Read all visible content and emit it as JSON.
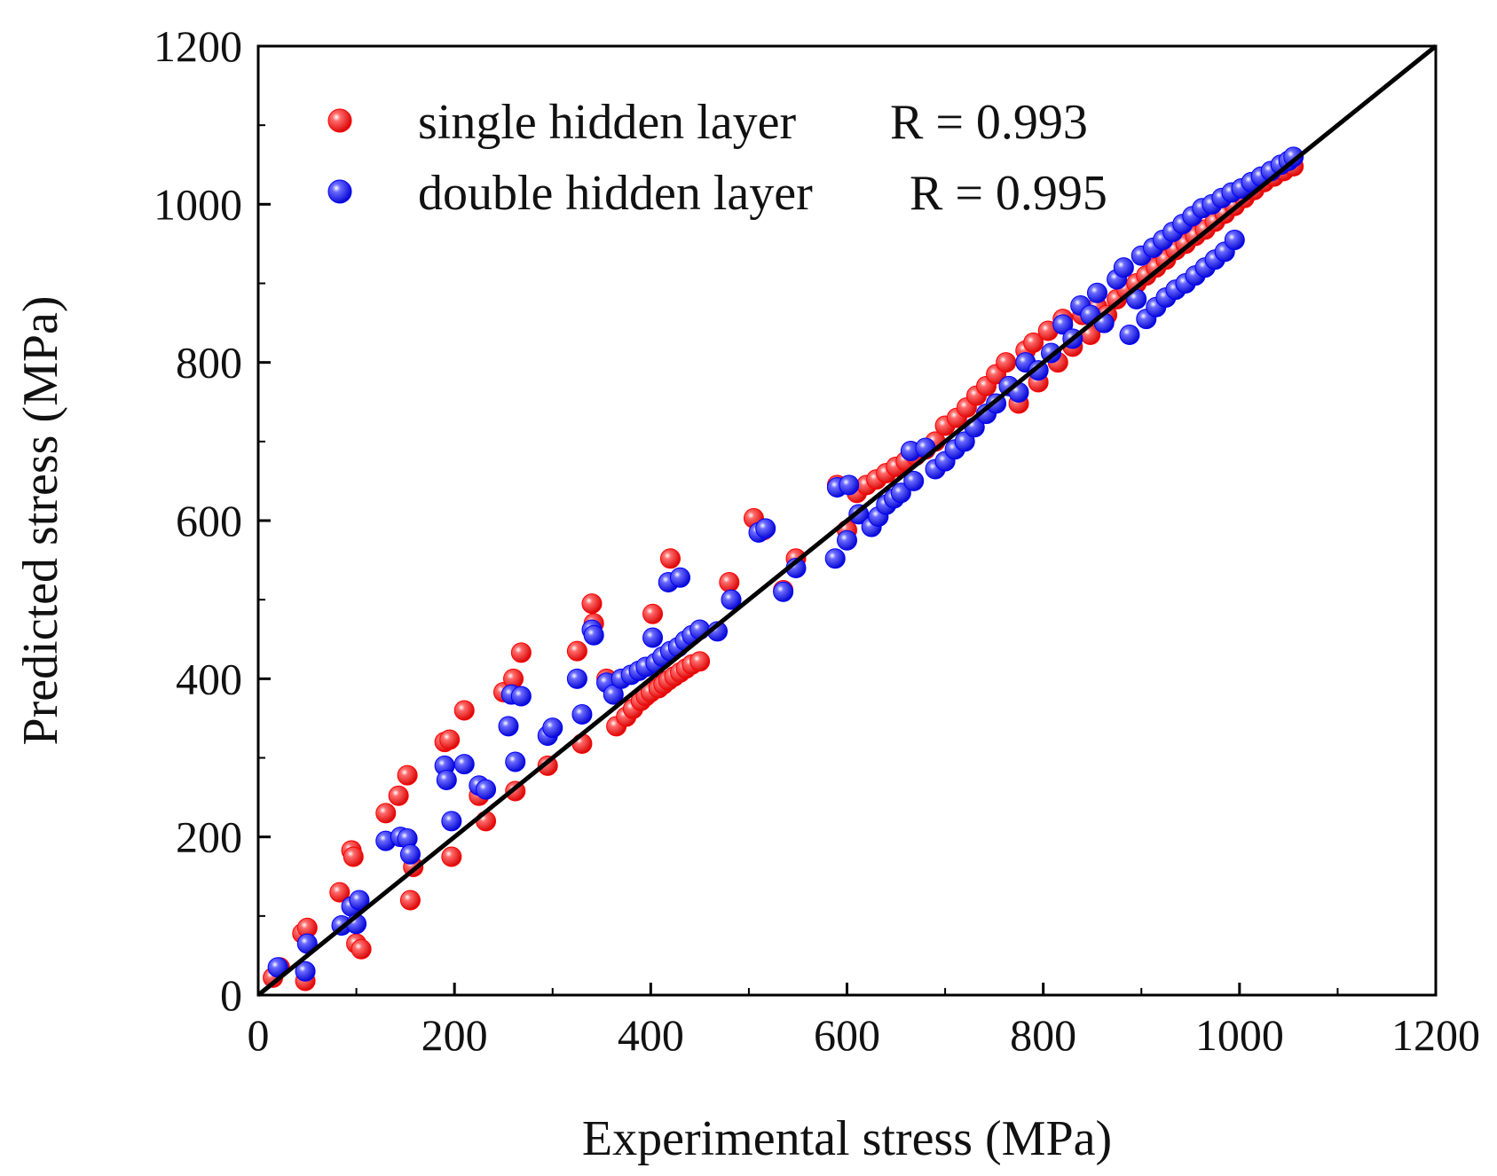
{
  "chart_data": {
    "type": "scatter",
    "title": "",
    "xlabel": "Experimental stress (MPa)",
    "ylabel": "Predicted stress (MPa)",
    "xlim": [
      0,
      1200
    ],
    "ylim": [
      0,
      1200
    ],
    "xticks": [
      "0",
      "200",
      "400",
      "600",
      "800",
      "1000",
      "1200"
    ],
    "yticks": [
      "0",
      "200",
      "400",
      "600",
      "800",
      "1000",
      "1200"
    ],
    "grid": false,
    "legend_position": "top-left",
    "reference_line": {
      "label": "y = x",
      "color": "#000000",
      "from": [
        0,
        0
      ],
      "to": [
        1200,
        1200
      ]
    },
    "series": [
      {
        "name": "single hidden layer",
        "legend_label": "single hidden layer",
        "stat_label": "R = 0.993",
        "color": "#ff0000",
        "points": [
          [
            15,
            22
          ],
          [
            22,
            35
          ],
          [
            45,
            78
          ],
          [
            48,
            18
          ],
          [
            50,
            85
          ],
          [
            100,
            65
          ],
          [
            105,
            58
          ],
          [
            83,
            130
          ],
          [
            95,
            183
          ],
          [
            97,
            175
          ],
          [
            130,
            230
          ],
          [
            143,
            252
          ],
          [
            152,
            278
          ],
          [
            155,
            120
          ],
          [
            158,
            162
          ],
          [
            190,
            320
          ],
          [
            195,
            323
          ],
          [
            197,
            175
          ],
          [
            210,
            360
          ],
          [
            225,
            252
          ],
          [
            232,
            220
          ],
          [
            250,
            383
          ],
          [
            260,
            400
          ],
          [
            262,
            258
          ],
          [
            268,
            433
          ],
          [
            295,
            290
          ],
          [
            325,
            435
          ],
          [
            330,
            318
          ],
          [
            340,
            495
          ],
          [
            342,
            470
          ],
          [
            355,
            400
          ],
          [
            365,
            340
          ],
          [
            375,
            352
          ],
          [
            382,
            362
          ],
          [
            390,
            372
          ],
          [
            395,
            378
          ],
          [
            400,
            383
          ],
          [
            402,
            482
          ],
          [
            408,
            388
          ],
          [
            413,
            393
          ],
          [
            418,
            398
          ],
          [
            420,
            552
          ],
          [
            424,
            403
          ],
          [
            430,
            408
          ],
          [
            436,
            413
          ],
          [
            442,
            418
          ],
          [
            450,
            422
          ],
          [
            480,
            522
          ],
          [
            505,
            603
          ],
          [
            515,
            588
          ],
          [
            535,
            512
          ],
          [
            548,
            552
          ],
          [
            590,
            645
          ],
          [
            600,
            588
          ],
          [
            610,
            635
          ],
          [
            620,
            645
          ],
          [
            630,
            652
          ],
          [
            640,
            660
          ],
          [
            650,
            668
          ],
          [
            660,
            675
          ],
          [
            670,
            682
          ],
          [
            680,
            690
          ],
          [
            690,
            700
          ],
          [
            700,
            720
          ],
          [
            712,
            730
          ],
          [
            722,
            743
          ],
          [
            732,
            758
          ],
          [
            742,
            770
          ],
          [
            752,
            785
          ],
          [
            762,
            800
          ],
          [
            775,
            748
          ],
          [
            782,
            815
          ],
          [
            790,
            825
          ],
          [
            795,
            775
          ],
          [
            805,
            840
          ],
          [
            815,
            800
          ],
          [
            820,
            855
          ],
          [
            830,
            820
          ],
          [
            840,
            860
          ],
          [
            848,
            835
          ],
          [
            855,
            870
          ],
          [
            865,
            860
          ],
          [
            875,
            880
          ],
          [
            885,
            892
          ],
          [
            895,
            900
          ],
          [
            905,
            910
          ],
          [
            915,
            920
          ],
          [
            925,
            930
          ],
          [
            935,
            942
          ],
          [
            945,
            950
          ],
          [
            955,
            960
          ],
          [
            965,
            968
          ],
          [
            975,
            978
          ],
          [
            985,
            988
          ],
          [
            995,
            998
          ],
          [
            1005,
            1008
          ],
          [
            1015,
            1018
          ],
          [
            1025,
            1028
          ],
          [
            1035,
            1035
          ],
          [
            1045,
            1042
          ],
          [
            1055,
            1048
          ]
        ]
      },
      {
        "name": "double hidden layer",
        "legend_label": "double hidden layer",
        "stat_label": "R = 0.995",
        "color": "#0000ff",
        "points": [
          [
            20,
            35
          ],
          [
            48,
            30
          ],
          [
            50,
            65
          ],
          [
            85,
            88
          ],
          [
            95,
            112
          ],
          [
            100,
            90
          ],
          [
            103,
            120
          ],
          [
            130,
            195
          ],
          [
            145,
            200
          ],
          [
            152,
            198
          ],
          [
            155,
            178
          ],
          [
            190,
            290
          ],
          [
            192,
            272
          ],
          [
            197,
            220
          ],
          [
            210,
            292
          ],
          [
            225,
            265
          ],
          [
            232,
            260
          ],
          [
            255,
            340
          ],
          [
            258,
            380
          ],
          [
            262,
            295
          ],
          [
            268,
            378
          ],
          [
            295,
            328
          ],
          [
            300,
            338
          ],
          [
            325,
            400
          ],
          [
            330,
            355
          ],
          [
            340,
            462
          ],
          [
            342,
            455
          ],
          [
            355,
            395
          ],
          [
            362,
            380
          ],
          [
            370,
            400
          ],
          [
            380,
            405
          ],
          [
            388,
            410
          ],
          [
            395,
            415
          ],
          [
            402,
            452
          ],
          [
            405,
            420
          ],
          [
            412,
            428
          ],
          [
            418,
            522
          ],
          [
            420,
            435
          ],
          [
            428,
            440
          ],
          [
            430,
            528
          ],
          [
            435,
            448
          ],
          [
            442,
            455
          ],
          [
            450,
            462
          ],
          [
            468,
            460
          ],
          [
            482,
            500
          ],
          [
            510,
            585
          ],
          [
            517,
            590
          ],
          [
            535,
            510
          ],
          [
            548,
            540
          ],
          [
            588,
            552
          ],
          [
            590,
            642
          ],
          [
            600,
            575
          ],
          [
            602,
            645
          ],
          [
            612,
            608
          ],
          [
            625,
            592
          ],
          [
            632,
            605
          ],
          [
            640,
            620
          ],
          [
            648,
            628
          ],
          [
            655,
            635
          ],
          [
            665,
            688
          ],
          [
            668,
            650
          ],
          [
            680,
            692
          ],
          [
            690,
            665
          ],
          [
            700,
            675
          ],
          [
            710,
            690
          ],
          [
            720,
            700
          ],
          [
            730,
            718
          ],
          [
            742,
            735
          ],
          [
            752,
            748
          ],
          [
            765,
            770
          ],
          [
            775,
            762
          ],
          [
            782,
            800
          ],
          [
            795,
            790
          ],
          [
            808,
            812
          ],
          [
            820,
            848
          ],
          [
            830,
            830
          ],
          [
            838,
            872
          ],
          [
            848,
            860
          ],
          [
            855,
            888
          ],
          [
            862,
            850
          ],
          [
            875,
            905
          ],
          [
            882,
            920
          ],
          [
            888,
            835
          ],
          [
            895,
            880
          ],
          [
            900,
            935
          ],
          [
            905,
            855
          ],
          [
            912,
            945
          ],
          [
            915,
            870
          ],
          [
            922,
            955
          ],
          [
            925,
            882
          ],
          [
            932,
            965
          ],
          [
            935,
            892
          ],
          [
            942,
            975
          ],
          [
            945,
            900
          ],
          [
            952,
            985
          ],
          [
            955,
            910
          ],
          [
            962,
            995
          ],
          [
            965,
            920
          ],
          [
            972,
            1000
          ],
          [
            975,
            930
          ],
          [
            982,
            1008
          ],
          [
            985,
            940
          ],
          [
            992,
            1015
          ],
          [
            995,
            955
          ],
          [
            1002,
            1020
          ],
          [
            1012,
            1028
          ],
          [
            1022,
            1035
          ],
          [
            1032,
            1042
          ],
          [
            1042,
            1050
          ],
          [
            1050,
            1055
          ],
          [
            1055,
            1060
          ]
        ]
      }
    ]
  }
}
